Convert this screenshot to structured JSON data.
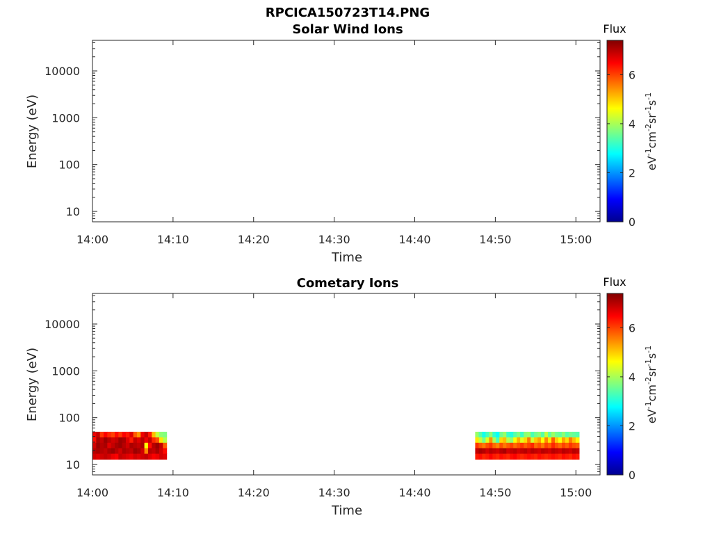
{
  "figure": {
    "title": "RPCICA150723T14.PNG"
  },
  "x_tick_labels": [
    "14:00",
    "14:10",
    "14:20",
    "14:30",
    "14:40",
    "14:50",
    "15:00"
  ],
  "y_tick_labels": [
    "10",
    "100",
    "1000",
    "10000"
  ],
  "colorbar": {
    "title": "Flux",
    "tick_labels": [
      "0",
      "2",
      "4",
      "6"
    ],
    "min": 0,
    "max": 7.4,
    "colormap": "jet"
  },
  "chart_data": [
    {
      "type": "heatmap",
      "title": "Solar Wind Ions",
      "xlabel": "Time",
      "ylabel": "Energy (eV)",
      "x_range_minutes_after_1400": [
        0,
        63
      ],
      "ylim": [
        6,
        45000
      ],
      "y_scale": "log",
      "cells": []
    },
    {
      "type": "heatmap",
      "title": "Cometary Ions",
      "xlabel": "Time",
      "ylabel": "Energy (eV)",
      "x_range_minutes_after_1400": [
        0,
        63
      ],
      "ylim": [
        6,
        45000
      ],
      "y_scale": "log",
      "energy_levels": [
        15,
        20,
        26,
        34,
        44
      ],
      "time_blocks": [
        {
          "t_start": 0.0,
          "t_end": 9.2,
          "flux_by_energy": [
            [
              6.8,
              6.7,
              6.8,
              6.9,
              6.8,
              6.6,
              6.5,
              6.9,
              6.8,
              6.7,
              6.6,
              6.8,
              6.7,
              6.8,
              6.9,
              6.7,
              6.5,
              6.6,
              6.8,
              6.7
            ],
            [
              7.0,
              7.1,
              7.0,
              6.9,
              7.1,
              7.2,
              7.0,
              6.8,
              7.1,
              7.0,
              6.9,
              7.2,
              7.1,
              6.8,
              5.5,
              7.0,
              6.9,
              7.1,
              6.8,
              6.4
            ],
            [
              6.8,
              7.2,
              7.0,
              7.1,
              6.7,
              6.9,
              7.1,
              7.2,
              7.0,
              6.8,
              7.1,
              7.0,
              6.9,
              7.1,
              4.6,
              6.4,
              7.0,
              7.2,
              6.9,
              5.8
            ],
            [
              6.4,
              7.1,
              6.9,
              7.2,
              7.0,
              6.8,
              6.9,
              7.2,
              7.1,
              6.7,
              6.3,
              6.9,
              6.7,
              7.0,
              6.6,
              6.9,
              6.2,
              5.9,
              4.8,
              4.1
            ],
            [
              6.6,
              6.9,
              6.1,
              6.5,
              6.2,
              6.0,
              6.4,
              6.1,
              6.5,
              6.3,
              6.7,
              5.8,
              5.4,
              6.6,
              6.9,
              6.3,
              5.1,
              4.2,
              3.8,
              3.7
            ]
          ]
        },
        {
          "t_start": 47.5,
          "t_end": 60.4,
          "flux_by_energy": [
            [
              6.3,
              6.4,
              6.2,
              6.3,
              6.5,
              6.3,
              6.2,
              6.4,
              6.3,
              6.2,
              6.4,
              6.5,
              6.3,
              6.2,
              6.3,
              6.4,
              6.3,
              6.2,
              6.4,
              6.3,
              6.2,
              6.3,
              6.4,
              6.3,
              6.2,
              6.4,
              6.3,
              6.2,
              6.4,
              6.3
            ],
            [
              6.9,
              7.1,
              7.0,
              6.8,
              7.0,
              6.9,
              6.8,
              7.0,
              7.1,
              6.8,
              6.9,
              7.0,
              6.8,
              6.9,
              7.0,
              6.8,
              7.0,
              6.9,
              6.8,
              7.0,
              6.9,
              6.8,
              7.0,
              6.9,
              6.8,
              7.0,
              6.9,
              6.8,
              7.0,
              6.9
            ],
            [
              6.1,
              5.8,
              5.6,
              5.9,
              6.1,
              5.7,
              5.5,
              5.9,
              5.6,
              5.8,
              6.0,
              5.7,
              5.9,
              6.1,
              5.8,
              6.0,
              6.2,
              5.7,
              5.9,
              5.6,
              6.0,
              5.8,
              6.2,
              5.9,
              5.7,
              6.0,
              5.8,
              6.1,
              5.9,
              5.8
            ],
            [
              4.8,
              4.2,
              3.6,
              4.4,
              5.4,
              4.0,
              3.3,
              4.9,
              5.1,
              4.1,
              3.8,
              4.6,
              5.2,
              4.4,
              4.9,
              5.6,
              4.3,
              5.0,
              5.3,
              4.6,
              5.5,
              4.8,
              5.8,
              5.0,
              4.6,
              5.3,
              4.9,
              5.6,
              5.1,
              4.7
            ],
            [
              3.9,
              3.4,
              2.9,
              3.3,
              3.8,
              3.1,
              2.8,
              3.6,
              3.9,
              3.2,
              3.0,
              3.4,
              3.7,
              3.2,
              3.8,
              3.9,
              3.3,
              3.6,
              3.8,
              3.4,
              4.2,
              3.5,
              3.9,
              3.6,
              3.5,
              3.8,
              3.4,
              3.6,
              3.5,
              3.4
            ]
          ]
        }
      ]
    }
  ]
}
